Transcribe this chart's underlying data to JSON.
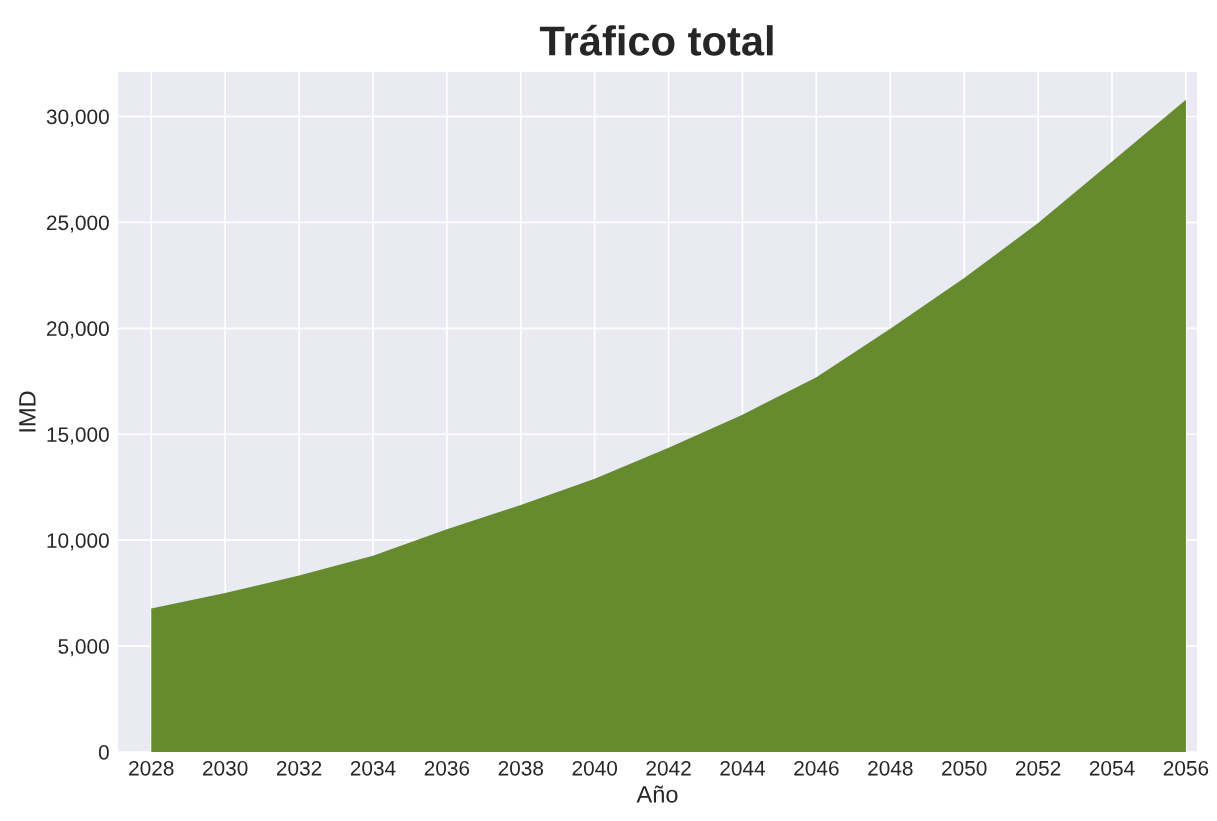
{
  "chart_data": {
    "type": "area",
    "title": "Tráfico total",
    "xlabel": "Año",
    "ylabel": "IMD",
    "x": [
      2028,
      2030,
      2032,
      2034,
      2036,
      2038,
      2040,
      2042,
      2044,
      2046,
      2048,
      2050,
      2052,
      2054,
      2056
    ],
    "series": [
      {
        "color": "#668a2e",
        "values": [
          6770,
          7500,
          8330,
          9260,
          10510,
          11660,
          12900,
          14360,
          15920,
          17690,
          19980,
          22370,
          24970,
          27880,
          30790
        ]
      }
    ],
    "xlim": [
      2027.1,
      2056.3
    ],
    "xticks": [
      2028,
      2030,
      2032,
      2034,
      2036,
      2038,
      2040,
      2042,
      2044,
      2046,
      2048,
      2050,
      2052,
      2054,
      2056
    ],
    "ylim": [
      0,
      32100
    ],
    "yticks": [
      0,
      {
        "value": 5000,
        "label": "5,000"
      },
      {
        "value": 10000,
        "label": "10,000"
      },
      {
        "value": 15000,
        "label": "15,000"
      },
      {
        "value": 20000,
        "label": "20,000"
      },
      {
        "value": 25000,
        "label": "25,000"
      },
      {
        "value": 30000,
        "label": "30,000"
      }
    ],
    "grid": true,
    "legend": false
  }
}
